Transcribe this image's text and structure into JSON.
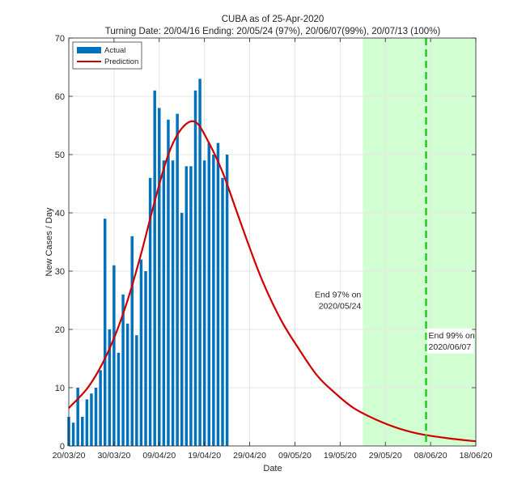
{
  "chart_data": {
    "type": "bar",
    "title": "CUBA as of 25-Apr-2020",
    "subtitle": "Turning Date: 20/04/16  Ending: 20/05/24 (97%), 20/06/07(99%), 20/07/13 (100%)",
    "xlabel": "Date",
    "ylabel": "New Cases / Day",
    "xlim": [
      "2020-03-20",
      "2020-06-18"
    ],
    "ylim": [
      0,
      70
    ],
    "yticks": [
      0,
      10,
      20,
      30,
      40,
      50,
      60,
      70
    ],
    "xticks": [
      {
        "date": "2020-03-20",
        "label": "20/03/20"
      },
      {
        "date": "2020-03-30",
        "label": "30/03/20"
      },
      {
        "date": "2020-04-09",
        "label": "09/04/20"
      },
      {
        "date": "2020-04-19",
        "label": "19/04/20"
      },
      {
        "date": "2020-04-29",
        "label": "29/04/20"
      },
      {
        "date": "2020-05-09",
        "label": "09/05/20"
      },
      {
        "date": "2020-05-19",
        "label": "19/05/20"
      },
      {
        "date": "2020-05-29",
        "label": "29/05/20"
      },
      {
        "date": "2020-06-08",
        "label": "08/06/20"
      },
      {
        "date": "2020-06-18",
        "label": "18/06/20"
      }
    ],
    "grid": true,
    "legend_position": "top-left",
    "series": [
      {
        "name": "Actual",
        "type": "bar",
        "color": "#0072BD",
        "points": [
          {
            "date": "2020-03-20",
            "value": 5
          },
          {
            "date": "2020-03-21",
            "value": 4
          },
          {
            "date": "2020-03-22",
            "value": 10
          },
          {
            "date": "2020-03-23",
            "value": 5
          },
          {
            "date": "2020-03-24",
            "value": 8
          },
          {
            "date": "2020-03-25",
            "value": 9
          },
          {
            "date": "2020-03-26",
            "value": 10
          },
          {
            "date": "2020-03-27",
            "value": 13
          },
          {
            "date": "2020-03-28",
            "value": 39
          },
          {
            "date": "2020-03-29",
            "value": 20
          },
          {
            "date": "2020-03-30",
            "value": 31
          },
          {
            "date": "2020-03-31",
            "value": 16
          },
          {
            "date": "2020-04-01",
            "value": 26
          },
          {
            "date": "2020-04-02",
            "value": 21
          },
          {
            "date": "2020-04-03",
            "value": 36
          },
          {
            "date": "2020-04-04",
            "value": 19
          },
          {
            "date": "2020-04-05",
            "value": 32
          },
          {
            "date": "2020-04-06",
            "value": 30
          },
          {
            "date": "2020-04-07",
            "value": 46
          },
          {
            "date": "2020-04-08",
            "value": 61
          },
          {
            "date": "2020-04-09",
            "value": 58
          },
          {
            "date": "2020-04-10",
            "value": 49
          },
          {
            "date": "2020-04-11",
            "value": 56
          },
          {
            "date": "2020-04-12",
            "value": 49
          },
          {
            "date": "2020-04-13",
            "value": 57
          },
          {
            "date": "2020-04-14",
            "value": 40
          },
          {
            "date": "2020-04-15",
            "value": 48
          },
          {
            "date": "2020-04-16",
            "value": 48
          },
          {
            "date": "2020-04-17",
            "value": 61
          },
          {
            "date": "2020-04-18",
            "value": 63
          },
          {
            "date": "2020-04-19",
            "value": 49
          },
          {
            "date": "2020-04-20",
            "value": 52
          },
          {
            "date": "2020-04-21",
            "value": 50
          },
          {
            "date": "2020-04-22",
            "value": 52
          },
          {
            "date": "2020-04-23",
            "value": 46
          },
          {
            "date": "2020-04-24",
            "value": 50
          }
        ]
      },
      {
        "name": "Prediction",
        "type": "line",
        "color": "#D00000",
        "points": [
          {
            "date": "2020-03-20",
            "value": 6.5
          },
          {
            "date": "2020-03-24",
            "value": 9.8
          },
          {
            "date": "2020-03-27",
            "value": 13.5
          },
          {
            "date": "2020-03-30",
            "value": 18.5
          },
          {
            "date": "2020-04-02",
            "value": 25
          },
          {
            "date": "2020-04-05",
            "value": 33
          },
          {
            "date": "2020-04-08",
            "value": 42
          },
          {
            "date": "2020-04-11",
            "value": 50
          },
          {
            "date": "2020-04-14",
            "value": 54.5
          },
          {
            "date": "2020-04-17",
            "value": 55.6
          },
          {
            "date": "2020-04-20",
            "value": 52
          },
          {
            "date": "2020-04-23",
            "value": 47
          },
          {
            "date": "2020-04-26",
            "value": 40.5
          },
          {
            "date": "2020-04-29",
            "value": 34
          },
          {
            "date": "2020-05-02",
            "value": 28
          },
          {
            "date": "2020-05-06",
            "value": 21.5
          },
          {
            "date": "2020-05-10",
            "value": 16.5
          },
          {
            "date": "2020-05-14",
            "value": 12
          },
          {
            "date": "2020-05-18",
            "value": 9
          },
          {
            "date": "2020-05-22",
            "value": 6.5
          },
          {
            "date": "2020-05-27",
            "value": 4.5
          },
          {
            "date": "2020-06-01",
            "value": 3
          },
          {
            "date": "2020-06-06",
            "value": 2
          },
          {
            "date": "2020-06-12",
            "value": 1.3
          },
          {
            "date": "2020-06-18",
            "value": 0.8
          }
        ]
      }
    ],
    "shaded_region": {
      "start": "2020-05-24",
      "end": "2020-06-18",
      "color": "#CCFFCC"
    },
    "vertical_line": {
      "date": "2020-06-07",
      "color": "#22CC22",
      "style": "dashed"
    },
    "annotations": [
      {
        "text": [
          "End 97% on",
          "2020/05/24"
        ],
        "date": "2020-05-24",
        "value": 25.5,
        "align": "right"
      },
      {
        "text": [
          "End 99% on",
          "2020/06/07"
        ],
        "date": "2020-06-07",
        "value": 18.5,
        "align": "left"
      }
    ],
    "colors": {
      "axis": "#262626",
      "grid": "#E6E6E6"
    }
  }
}
